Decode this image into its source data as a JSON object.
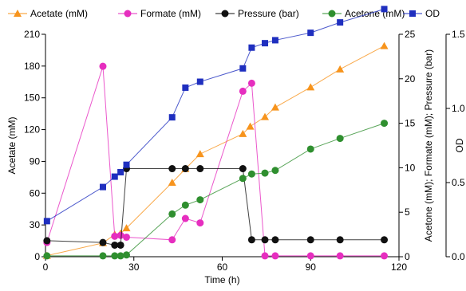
{
  "chart_data": {
    "type": "line",
    "xlabel": "Time (h)",
    "xlim": [
      0,
      120
    ],
    "xticks": [
      0,
      30,
      60,
      90,
      120
    ],
    "y_axes": [
      {
        "id": "left",
        "label": "Acetate (mM)",
        "lim": [
          0,
          210
        ],
        "ticks": [
          0,
          30,
          60,
          90,
          120,
          150,
          180,
          210
        ]
      },
      {
        "id": "right1",
        "label": "Acetone (mM); Formate (mM); Pressure (bar)",
        "lim": [
          0,
          25
        ],
        "ticks": [
          0,
          5,
          10,
          15,
          20,
          25
        ]
      },
      {
        "id": "right2",
        "label": "OD",
        "lim": [
          0,
          1.5
        ],
        "ticks": [
          "0.0",
          "0.5",
          "1.0",
          "1.5"
        ]
      }
    ],
    "series": [
      {
        "name": "Acetate (mM)",
        "axis": "left",
        "color": "#f7941d",
        "marker": "triangle",
        "x": [
          0.5,
          19.5,
          23.5,
          25.5,
          27.5,
          43,
          47.5,
          52.5,
          67,
          69.5,
          74.5,
          78,
          90,
          100,
          115
        ],
        "y": [
          1,
          13,
          21,
          22,
          27,
          70,
          83,
          97,
          116,
          123,
          132,
          141,
          160,
          177,
          199
        ]
      },
      {
        "name": "Formate (mM)",
        "axis": "right1",
        "color": "#e62ebf",
        "marker": "circle",
        "x": [
          0.5,
          19.5,
          23.5,
          25.5,
          27.5,
          43,
          47.5,
          52.5,
          67,
          70,
          74.5,
          78,
          90,
          100,
          115
        ],
        "y": [
          1.6,
          21.4,
          2.3,
          2.4,
          2.2,
          1.9,
          4.3,
          3.8,
          18.6,
          19.5,
          0.1,
          0.1,
          0.1,
          0.1,
          0.1
        ]
      },
      {
        "name": "Pressure (bar)",
        "axis": "right1",
        "color": "#111111",
        "marker": "circle",
        "x": [
          0.5,
          19.5,
          23.5,
          25.5,
          27.5,
          43,
          47.5,
          52.5,
          67,
          70,
          74.5,
          78,
          90,
          100,
          115
        ],
        "y": [
          1.8,
          1.6,
          1.3,
          1.3,
          9.9,
          9.9,
          9.9,
          9.9,
          9.9,
          1.9,
          1.9,
          1.9,
          1.9,
          1.9,
          1.9
        ]
      },
      {
        "name": "Acetone (mM)",
        "axis": "right1",
        "color": "#2f8f2f",
        "marker": "circle",
        "x": [
          0.5,
          19.5,
          23.5,
          25.5,
          27.5,
          43,
          47.5,
          52.5,
          67,
          70,
          74.5,
          78,
          90,
          100,
          115
        ],
        "y": [
          0.1,
          0.1,
          0.1,
          0.1,
          0.2,
          4.8,
          5.8,
          6.4,
          8.8,
          9.3,
          9.4,
          9.7,
          12.1,
          13.3,
          15.0
        ]
      },
      {
        "name": "OD",
        "axis": "right2",
        "color": "#1f2fbf",
        "marker": "square",
        "x": [
          0.5,
          19.5,
          23.5,
          25.5,
          27.5,
          43,
          47.5,
          52.5,
          67,
          70,
          74.5,
          78,
          90,
          100,
          115
        ],
        "y": [
          0.24,
          0.47,
          0.54,
          0.57,
          0.62,
          0.94,
          1.14,
          1.18,
          1.27,
          1.41,
          1.44,
          1.46,
          1.51,
          1.58,
          1.67
        ]
      }
    ],
    "legend": "top"
  }
}
